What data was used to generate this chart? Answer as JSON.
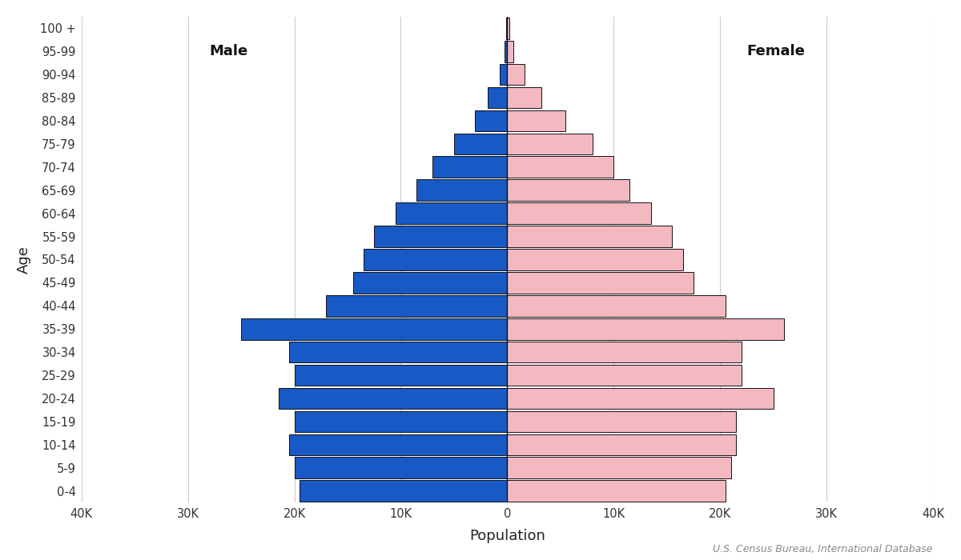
{
  "age_groups": [
    "0-4",
    "5-9",
    "10-14",
    "15-19",
    "20-24",
    "25-29",
    "30-34",
    "35-39",
    "40-44",
    "45-49",
    "50-54",
    "55-59",
    "60-64",
    "65-69",
    "70-74",
    "75-79",
    "80-84",
    "85-89",
    "90-94",
    "95-99",
    "100 +"
  ],
  "male": [
    19500,
    20000,
    20500,
    20000,
    21500,
    20000,
    20500,
    25000,
    17000,
    14500,
    13500,
    12500,
    10500,
    8500,
    7000,
    5000,
    3000,
    1800,
    700,
    250,
    80
  ],
  "female": [
    20500,
    21000,
    21500,
    21500,
    25000,
    22000,
    22000,
    26000,
    20500,
    17500,
    16500,
    15500,
    13500,
    11500,
    10000,
    8000,
    5500,
    3200,
    1600,
    600,
    180
  ],
  "male_color": "#1859c5",
  "female_color": "#f4b8c1",
  "male_label": "Male",
  "female_label": "Female",
  "xlabel": "Population",
  "ylabel": "Age",
  "xlim": 40000,
  "xtick_labels": [
    "40K",
    "30K",
    "20K",
    "10K",
    "0",
    "10K",
    "20K",
    "30K",
    "40K"
  ],
  "xtick_values": [
    -40000,
    -30000,
    -20000,
    -10000,
    0,
    10000,
    20000,
    30000,
    40000
  ],
  "source_text": "U.S. Census Bureau, International Database",
  "background_color": "#ffffff",
  "edgecolor": "#111111",
  "gridcolor": "#cccccc",
  "line_color": "#111111",
  "bar_height": 0.92
}
